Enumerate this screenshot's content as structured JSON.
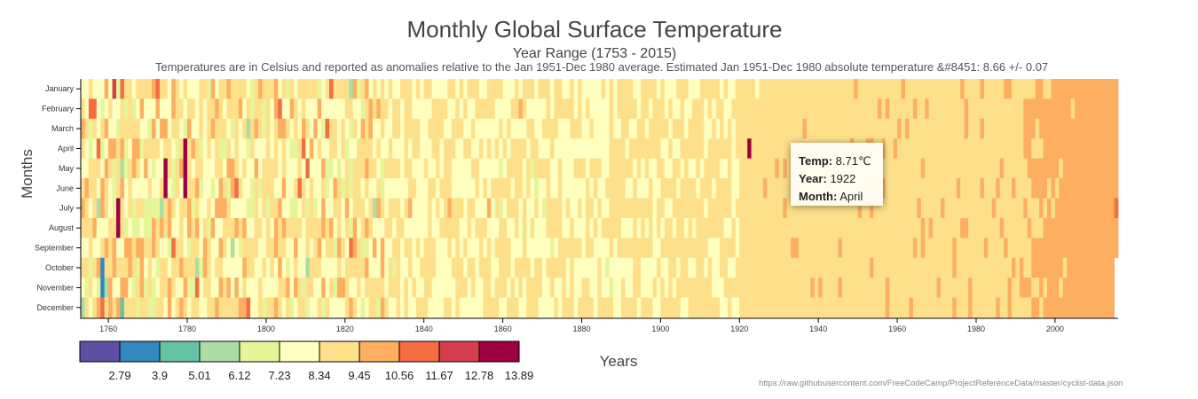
{
  "header": {
    "title": "Monthly Global Surface Temperature",
    "subtitle": "Year Range (1753 - 2015)",
    "description": "Temperatures are in Celsius and reported as anomalies relative to the Jan 1951-Dec 1980 average. Estimated Jan 1951-Dec 1980 absolute temperature &#8451: 8.66 +/- 0.07"
  },
  "tooltip": {
    "temp_label": "Temp:",
    "temp_value": "8.71℃",
    "year_label": "Year:",
    "year_value": "1922",
    "month_label": "Month:",
    "month_value": "April"
  },
  "source": "https://raw.githubusercontent.com/FreeCodeCamp/ProjectReferenceData/master/cyclist-data.json",
  "chart_data": {
    "type": "heatmap",
    "title": "Monthly Global Surface Temperature",
    "subtitle": "Year Range (1753 - 2015)",
    "xlabel": "Years",
    "ylabel": "Months",
    "x_range": [
      1753,
      2015
    ],
    "x_ticks": [
      1760,
      1780,
      1800,
      1820,
      1840,
      1860,
      1880,
      1900,
      1920,
      1940,
      1960,
      1980,
      2000
    ],
    "y_categories": [
      "January",
      "February",
      "March",
      "April",
      "May",
      "June",
      "July",
      "August",
      "September",
      "October",
      "November",
      "December"
    ],
    "base_temperature": 8.66,
    "legend": {
      "placement": "bottom-left",
      "thresholds": [
        "2.79",
        "3.9",
        "5.01",
        "6.12",
        "7.23",
        "8.34",
        "9.45",
        "10.56",
        "11.67",
        "12.78",
        "13.89"
      ],
      "colors": [
        "#5e4fa2",
        "#3288bd",
        "#66c2a5",
        "#abdda4",
        "#e6f598",
        "#ffffbf",
        "#fee08b",
        "#fdae61",
        "#f46d43",
        "#d53e4f",
        "#9e0142"
      ]
    },
    "highlighted_cell": {
      "year": 1922,
      "month": "April",
      "temp": 8.71
    },
    "extreme_cells": [
      {
        "year": 1761,
        "month": "January",
        "temp": 12.5
      },
      {
        "year": 1774,
        "month": "May",
        "temp": 13.9
      },
      {
        "year": 1774,
        "month": "June",
        "temp": 13.9
      },
      {
        "year": 1779,
        "month": "April",
        "temp": 13.9
      },
      {
        "year": 1779,
        "month": "May",
        "temp": 13.9
      },
      {
        "year": 1779,
        "month": "June",
        "temp": 13.9
      },
      {
        "year": 1762,
        "month": "July",
        "temp": 13.9
      },
      {
        "year": 1762,
        "month": "August",
        "temp": 13.9
      },
      {
        "year": 1758,
        "month": "October",
        "temp": 3.3
      },
      {
        "year": 1758,
        "month": "November",
        "temp": 3.3
      },
      {
        "year": 1763,
        "month": "December",
        "temp": 4.0
      },
      {
        "year": 1753,
        "month": "December",
        "temp": 5.5
      }
    ]
  }
}
